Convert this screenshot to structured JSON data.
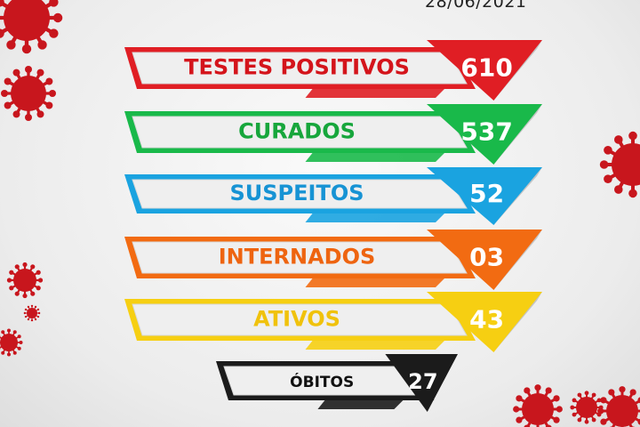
{
  "date": "28/06/2021",
  "rows": [
    {
      "label": "TESTES POSITIVOS",
      "value": "610",
      "color": "#e01e24",
      "text_color": "#d4141b"
    },
    {
      "label": "CURADOS",
      "value": "537",
      "color": "#19b94a",
      "text_color": "#17a63c"
    },
    {
      "label": "SUSPEITOS",
      "value": "52",
      "color": "#1aa3e0",
      "text_color": "#1793d4"
    },
    {
      "label": "INTERNADOS",
      "value": "03",
      "color": "#f26b12",
      "text_color": "#ee6410"
    },
    {
      "label": "ATIVOS",
      "value": "43",
      "color": "#f6cf12",
      "text_color": "#f0c20c"
    },
    {
      "label": "ÓBITOS",
      "value": "27",
      "color": "#1b1b1b",
      "text_color": "#111111"
    }
  ],
  "decorations": {
    "virus_color": "#c8161d"
  }
}
